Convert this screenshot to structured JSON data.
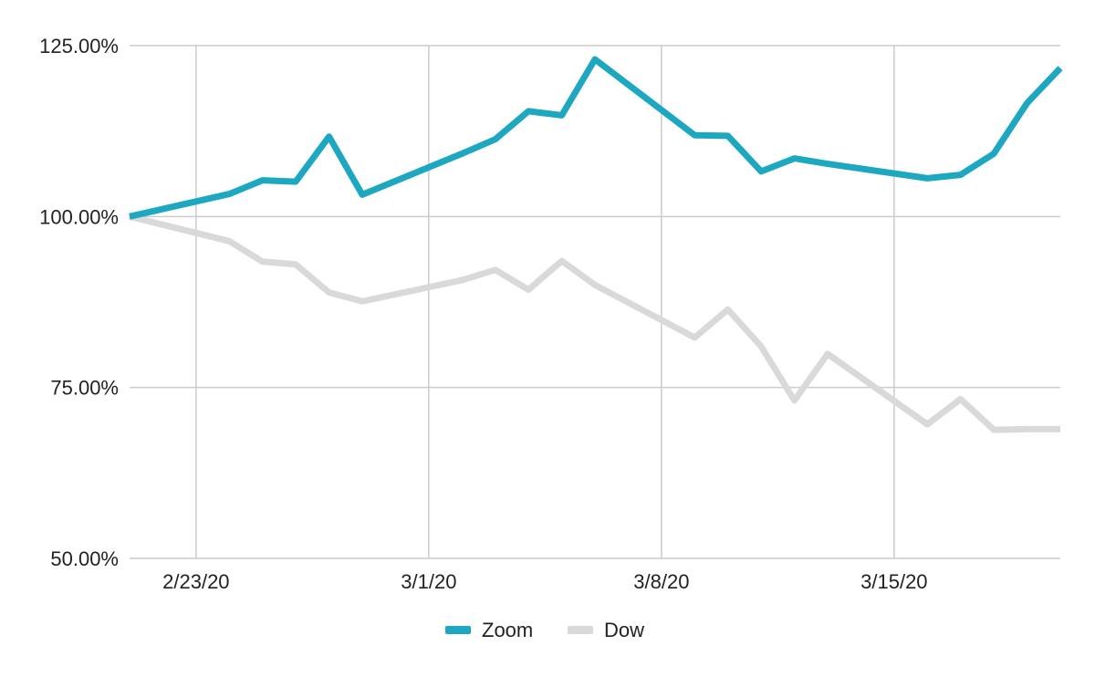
{
  "chart_data": {
    "type": "line",
    "title": "",
    "xlabel": "",
    "ylabel": "",
    "x": [
      "2/21/20",
      "2/24/20",
      "2/25/20",
      "2/26/20",
      "2/27/20",
      "2/28/20",
      "3/2/20",
      "3/3/20",
      "3/4/20",
      "3/5/20",
      "3/6/20",
      "3/9/20",
      "3/10/20",
      "3/11/20",
      "3/12/20",
      "3/13/20",
      "3/16/20",
      "3/17/20",
      "3/18/20",
      "3/19/20",
      "3/20/20"
    ],
    "x_ticks": [
      "2/23/20",
      "3/1/20",
      "3/8/20",
      "3/15/20"
    ],
    "ylim": [
      50,
      125
    ],
    "y_ticks": [
      "50.00%",
      "75.00%",
      "100.00%",
      "125.00%"
    ],
    "grid": true,
    "legend": "bottom",
    "series": [
      {
        "name": "Zoom",
        "color": "#1ea7c1",
        "values": [
          100.0,
          103.3,
          105.3,
          105.1,
          111.7,
          103.2,
          109.2,
          111.3,
          115.4,
          114.8,
          123.0,
          111.9,
          111.8,
          106.6,
          108.5,
          107.7,
          105.6,
          106.1,
          109.2,
          116.6,
          121.7
        ]
      },
      {
        "name": "Dow",
        "color": "#d9d9d9",
        "values": [
          100.0,
          96.4,
          93.4,
          93.0,
          88.9,
          87.6,
          90.7,
          92.2,
          89.3,
          93.5,
          90.0,
          82.3,
          86.4,
          81.0,
          73.1,
          79.9,
          69.6,
          73.3,
          68.8,
          68.9,
          68.9
        ]
      }
    ]
  }
}
